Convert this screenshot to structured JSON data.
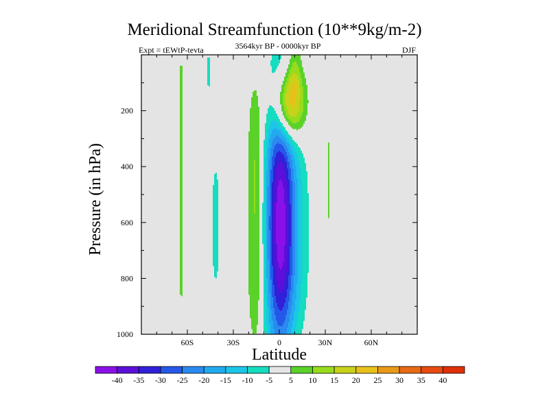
{
  "chart_data": {
    "type": "heatmap",
    "title": "Meridional Streamfunction (10**9kg/m-2)",
    "subtitle_left": "Expt = tEWtP-tevta",
    "subtitle_center": "3564kyr BP - 0000kyr BP",
    "subtitle_right": "DJF",
    "xlabel": "Latitude",
    "ylabel": "Pressure (in hPa)",
    "xlim": [
      -90,
      90
    ],
    "ylim": [
      1000,
      0
    ],
    "x_ticks": [
      {
        "value": -60,
        "label": "60S"
      },
      {
        "value": -30,
        "label": "30S"
      },
      {
        "value": 0,
        "label": "0"
      },
      {
        "value": 30,
        "label": "30N"
      },
      {
        "value": 60,
        "label": "60N"
      }
    ],
    "y_ticks": [
      {
        "value": 200,
        "label": "200"
      },
      {
        "value": 400,
        "label": "400"
      },
      {
        "value": 600,
        "label": "600"
      },
      {
        "value": 800,
        "label": "800"
      },
      {
        "value": 1000,
        "label": "1000"
      }
    ],
    "colorbar": {
      "levels": [
        -40,
        -35,
        -30,
        -25,
        -20,
        -15,
        -10,
        -5,
        5,
        10,
        15,
        20,
        25,
        30,
        35,
        40
      ],
      "labels": [
        "-40",
        "-35",
        "-30",
        "-25",
        "-20",
        "-15",
        "-10",
        "-5",
        "5",
        "10",
        "15",
        "20",
        "25",
        "30",
        "35",
        "40"
      ],
      "colors": [
        "#8a10e8",
        "#5a10d8",
        "#3020d8",
        "#2458e8",
        "#2a8af0",
        "#22aaf0",
        "#1cc6e8",
        "#16dcc0",
        "#e4e4e4",
        "#5ad22a",
        "#96dc1c",
        "#c8d21a",
        "#e8c01a",
        "#e89a18",
        "#e86a14",
        "#e84a10",
        "#e03008"
      ]
    },
    "features": [
      {
        "name": "northward-positive-band-60S",
        "lat_range": [
          -65,
          -63
        ],
        "p_range": [
          0,
          890
        ],
        "peak": 7
      },
      {
        "name": "negative-band-45S",
        "lat_range": [
          -48,
          -45
        ],
        "p_range": [
          0,
          120
        ],
        "peak": -6
      },
      {
        "name": "negative-band-40S",
        "lat_range": [
          -44,
          -39
        ],
        "p_range": [
          420,
          800
        ],
        "peak": -7
      },
      {
        "name": "positive-band-15S",
        "lat_range": [
          -20,
          -11
        ],
        "p_range": [
          180,
          960
        ],
        "peak": 12
      },
      {
        "name": "equatorial-negative-cell",
        "lat_range": [
          -12,
          20
        ],
        "p_range": [
          260,
          980
        ],
        "peak": -38
      },
      {
        "name": "upper-equatorial-positive-cell",
        "lat_range": [
          -5,
          18
        ],
        "p_range": [
          100,
          260
        ],
        "peak": 32
      },
      {
        "name": "positive-jet-column",
        "lat_range": [
          6,
          14
        ],
        "p_range": [
          0,
          110
        ],
        "peak": 8
      },
      {
        "name": "positive-band-32N",
        "lat_range": [
          31,
          33
        ],
        "p_range": [
          260,
          640
        ],
        "peak": 6
      }
    ]
  }
}
